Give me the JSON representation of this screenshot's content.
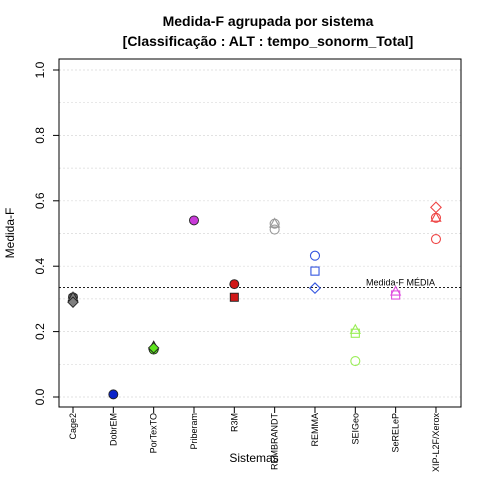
{
  "chart_data": {
    "type": "scatter",
    "title": "Medida-F agrupada por sistema",
    "subtitle": "[Classificação : ALT : tempo_sonorm_Total]",
    "xlabel": "Sistemas",
    "ylabel": "Medida-F",
    "ylim": [
      0,
      1
    ],
    "yticks": [
      "0.0",
      "0.2",
      "0.4",
      "0.6",
      "0.8",
      "1.0"
    ],
    "grid": true,
    "reference_line": {
      "value": 0.335,
      "label": "Medida-F MÉDIA"
    },
    "categories": [
      "Cage2",
      "DobrEM",
      "PorTexTO",
      "Priberam",
      "R3M",
      "REMBRANDT",
      "REMMA",
      "SEIGeo",
      "SeRELeP",
      "XIP-L2F/Xerox"
    ],
    "series": [
      {
        "category": "Cage2",
        "color": "#7f7f7f",
        "points": [
          {
            "y": 0.305,
            "shape": "circle"
          },
          {
            "y": 0.3,
            "shape": "square"
          },
          {
            "y": 0.305,
            "shape": "triangle"
          },
          {
            "y": 0.29,
            "shape": "diamond"
          }
        ]
      },
      {
        "category": "DobrEM",
        "color": "#0b24c9",
        "points": [
          {
            "y": 0.008,
            "shape": "circle"
          }
        ]
      },
      {
        "category": "PorTexTO",
        "color": "#5ee51f",
        "points": [
          {
            "y": 0.145,
            "shape": "circle"
          },
          {
            "y": 0.155,
            "shape": "triangle"
          },
          {
            "y": 0.15,
            "shape": "diamond"
          }
        ]
      },
      {
        "category": "Priberam",
        "color": "#c93bd9",
        "points": [
          {
            "y": 0.54,
            "shape": "circle"
          }
        ]
      },
      {
        "category": "R3M",
        "color": "#d01818",
        "points": [
          {
            "y": 0.345,
            "shape": "circle"
          },
          {
            "y": 0.305,
            "shape": "square"
          }
        ]
      },
      {
        "category": "REMBRANDT",
        "color": "#999999",
        "points": [
          {
            "y": 0.53,
            "shape": "circle-open"
          },
          {
            "y": 0.53,
            "shape": "triangle-open"
          },
          {
            "y": 0.512,
            "shape": "circle-open"
          }
        ]
      },
      {
        "category": "REMMA",
        "color": "#3355e0",
        "points": [
          {
            "y": 0.432,
            "shape": "circle-open"
          },
          {
            "y": 0.385,
            "shape": "square-open"
          },
          {
            "y": 0.333,
            "shape": "diamond-open"
          }
        ]
      },
      {
        "category": "SEIGeo",
        "color": "#99ee55",
        "points": [
          {
            "y": 0.205,
            "shape": "triangle-open"
          },
          {
            "y": 0.195,
            "shape": "square-open"
          },
          {
            "y": 0.11,
            "shape": "circle-open"
          }
        ]
      },
      {
        "category": "SeRELeP",
        "color": "#e050e0",
        "points": [
          {
            "y": 0.322,
            "shape": "triangle-open"
          },
          {
            "y": 0.312,
            "shape": "square-open"
          }
        ]
      },
      {
        "category": "XIP-L2F/Xerox",
        "color": "#ee4444",
        "points": [
          {
            "y": 0.58,
            "shape": "diamond-open"
          },
          {
            "y": 0.548,
            "shape": "circle-open"
          },
          {
            "y": 0.548,
            "shape": "triangle-open"
          },
          {
            "y": 0.483,
            "shape": "circle-open"
          }
        ]
      }
    ]
  }
}
